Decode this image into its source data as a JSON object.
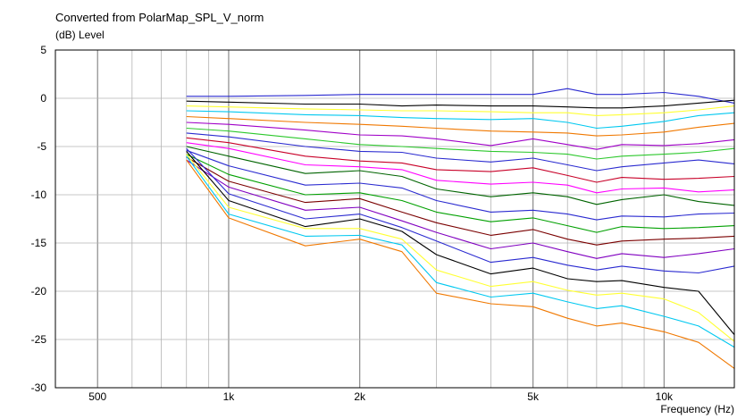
{
  "chart_data": {
    "type": "line",
    "title": "Converted from PolarMap_SPL_V_norm",
    "ylabel": "(dB)  Level",
    "xlabel": "Frequency  (Hz)",
    "xscale": "log",
    "xlim": [
      400,
      14500
    ],
    "ylim": [
      -30,
      5
    ],
    "grid": true,
    "x_tick_labels": [
      {
        "value": 500,
        "label": "500"
      },
      {
        "value": 1000,
        "label": "1k"
      },
      {
        "value": 2000,
        "label": "2k"
      },
      {
        "value": 5000,
        "label": "5k"
      },
      {
        "value": 10000,
        "label": "10k"
      }
    ],
    "y_ticks": [
      5,
      0,
      -5,
      -10,
      -15,
      -20,
      -25,
      -30
    ],
    "x": [
      800,
      1000,
      1500,
      2000,
      2500,
      3000,
      4000,
      5000,
      6000,
      7000,
      8000,
      10000,
      12000,
      14500
    ],
    "series": [
      {
        "color": "#2a2ad0",
        "values": [
          0.2,
          0.2,
          0.3,
          0.4,
          0.4,
          0.4,
          0.4,
          0.4,
          1.0,
          0.4,
          0.4,
          0.6,
          0.2,
          -0.5
        ]
      },
      {
        "color": "#000000",
        "values": [
          -0.3,
          -0.4,
          -0.6,
          -0.6,
          -0.8,
          -0.7,
          -0.8,
          -0.8,
          -0.9,
          -1.0,
          -1.0,
          -0.8,
          -0.5,
          -0.2
        ]
      },
      {
        "color": "#ffff33",
        "values": [
          -0.8,
          -0.9,
          -1.1,
          -1.2,
          -1.3,
          -1.3,
          -1.4,
          -1.5,
          -1.5,
          -1.8,
          -1.7,
          -1.5,
          -1.2,
          -0.8
        ]
      },
      {
        "color": "#00c8f0",
        "values": [
          -1.3,
          -1.4,
          -1.7,
          -1.8,
          -2.0,
          -2.1,
          -2.2,
          -2.1,
          -2.5,
          -3.1,
          -2.9,
          -2.4,
          -1.8,
          -1.5
        ]
      },
      {
        "color": "#f07800",
        "values": [
          -1.9,
          -2.1,
          -2.5,
          -2.7,
          -2.9,
          -3.1,
          -3.4,
          -3.5,
          -3.6,
          -3.9,
          -3.8,
          -3.5,
          -3.0,
          -2.6
        ]
      },
      {
        "color": "#a000c8",
        "values": [
          -2.5,
          -2.7,
          -3.3,
          -3.8,
          -3.9,
          -4.2,
          -4.9,
          -4.2,
          -4.8,
          -5.3,
          -4.8,
          -4.9,
          -4.7,
          -4.3
        ]
      },
      {
        "color": "#2cc82c",
        "values": [
          -3.1,
          -3.4,
          -4.2,
          -4.8,
          -5.0,
          -5.2,
          -5.5,
          -5.6,
          -5.8,
          -6.3,
          -6.0,
          -5.8,
          -5.6,
          -5.2
        ]
      },
      {
        "color": "#2a2ad0",
        "values": [
          -3.6,
          -4.0,
          -5.0,
          -5.5,
          -5.6,
          -6.2,
          -6.6,
          -6.2,
          -6.9,
          -7.5,
          -7.1,
          -6.7,
          -6.4,
          -6.8
        ]
      },
      {
        "color": "#c80028",
        "values": [
          -4.1,
          -4.6,
          -6.0,
          -6.5,
          -6.7,
          -7.4,
          -7.6,
          -7.2,
          -8.0,
          -8.7,
          -8.2,
          -8.4,
          -8.3,
          -8.1
        ]
      },
      {
        "color": "#ff00ff",
        "values": [
          -4.6,
          -5.2,
          -6.9,
          -7.1,
          -7.4,
          -8.5,
          -8.9,
          -8.7,
          -9.0,
          -9.8,
          -9.4,
          -9.3,
          -9.7,
          -9.5
        ]
      },
      {
        "color": "#006400",
        "values": [
          -5.0,
          -6.0,
          -7.8,
          -7.5,
          -8.1,
          -9.4,
          -10.2,
          -9.8,
          -10.2,
          -11.0,
          -10.5,
          -10.0,
          -10.7,
          -11.1
        ]
      },
      {
        "color": "#2a2ad0",
        "values": [
          -5.4,
          -7.0,
          -9.0,
          -8.8,
          -9.3,
          -10.6,
          -11.8,
          -11.6,
          -12.0,
          -12.6,
          -12.2,
          -12.3,
          -12.0,
          -11.9
        ]
      },
      {
        "color": "#00a000",
        "values": [
          -5.8,
          -7.9,
          -10.0,
          -9.8,
          -10.6,
          -11.8,
          -12.8,
          -12.4,
          -13.2,
          -13.9,
          -13.3,
          -13.5,
          -13.4,
          -13.2
        ]
      },
      {
        "color": "#7a0000",
        "values": [
          -6.1,
          -8.6,
          -10.8,
          -10.4,
          -11.8,
          -12.9,
          -14.2,
          -13.6,
          -14.6,
          -15.2,
          -14.8,
          -14.6,
          -14.5,
          -14.3
        ]
      },
      {
        "color": "#8000c0",
        "values": [
          -6.4,
          -9.2,
          -11.6,
          -11.3,
          -12.7,
          -13.9,
          -15.6,
          -15.0,
          -15.9,
          -16.6,
          -16.1,
          -16.5,
          -16.1,
          -15.6
        ]
      },
      {
        "color": "#2a2ad0",
        "values": [
          -5.2,
          -9.9,
          -12.5,
          -12.0,
          -13.4,
          -14.8,
          -17.0,
          -16.5,
          -17.3,
          -17.8,
          -17.4,
          -17.9,
          -18.1,
          -17.4
        ]
      },
      {
        "color": "#000000",
        "values": [
          -5.5,
          -10.6,
          -13.3,
          -12.5,
          -13.8,
          -16.2,
          -18.2,
          -17.6,
          -18.7,
          -19.0,
          -18.9,
          -19.6,
          -20.0,
          -24.5
        ]
      },
      {
        "color": "#ffff33",
        "values": [
          -5.8,
          -11.3,
          -13.5,
          -13.5,
          -14.6,
          -17.8,
          -19.5,
          -19.0,
          -19.9,
          -20.4,
          -20.2,
          -20.8,
          -22.2,
          -25.2
        ]
      },
      {
        "color": "#00c8f0",
        "values": [
          -6.0,
          -12.0,
          -14.3,
          -14.2,
          -15.2,
          -19.1,
          -20.6,
          -20.2,
          -21.1,
          -21.8,
          -21.5,
          -22.6,
          -23.6,
          -25.8
        ]
      },
      {
        "color": "#f07800",
        "values": [
          -6.4,
          -12.4,
          -15.3,
          -14.6,
          -15.9,
          -20.2,
          -21.3,
          -21.6,
          -22.8,
          -23.6,
          -23.3,
          -24.2,
          -25.3,
          -28.0
        ]
      }
    ]
  }
}
